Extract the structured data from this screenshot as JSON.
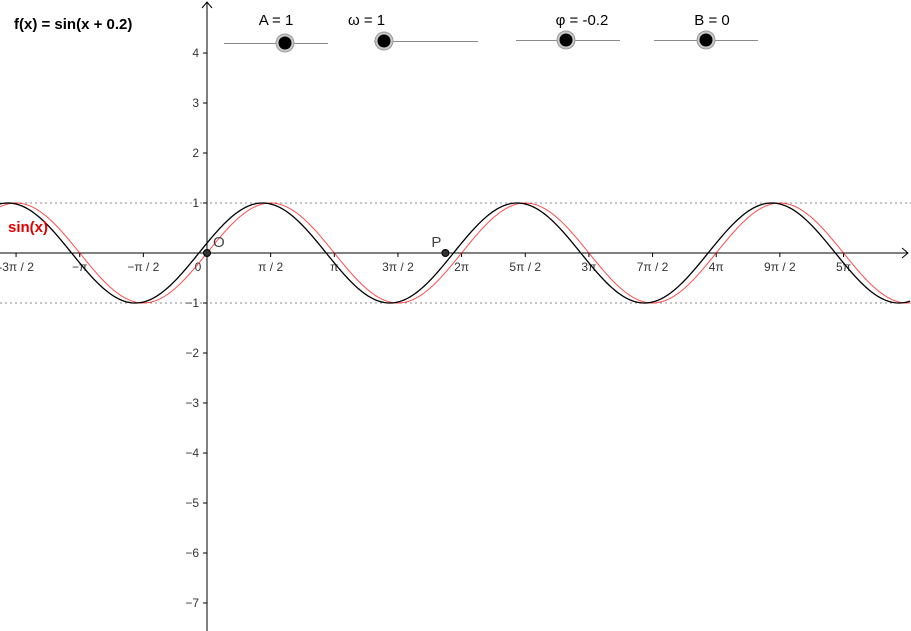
{
  "function_label": "f(x) = sin(x + 0.2)",
  "sliders": [
    {
      "label": "A = 1",
      "value": 1
    },
    {
      "label": "ω = 1",
      "value": 1
    },
    {
      "label": "φ = -0.2",
      "value": -0.2
    },
    {
      "label": "B = 0",
      "value": 0
    }
  ],
  "colors": {
    "f_curve": "#000000",
    "sin_curve": "#ff0000",
    "axis": "#000000",
    "text": "#333333"
  },
  "chart_data": {
    "type": "line",
    "title": "",
    "xlabel": "",
    "ylabel": "",
    "xlim": [
      -4.71,
      14.6
    ],
    "ylim": [
      -7.5,
      5
    ],
    "x_ticks": [
      {
        "value": -4.712,
        "label": "-3π / 2"
      },
      {
        "value": -3.1416,
        "label": "−π"
      },
      {
        "value": -1.5708,
        "label": "−π / 2"
      },
      {
        "value": 0,
        "label": "0"
      },
      {
        "value": 1.5708,
        "label": "π / 2"
      },
      {
        "value": 3.1416,
        "label": "π"
      },
      {
        "value": 4.712,
        "label": "3π / 2"
      },
      {
        "value": 6.2832,
        "label": "2π"
      },
      {
        "value": 7.854,
        "label": "5π / 2"
      },
      {
        "value": 9.4248,
        "label": "3π"
      },
      {
        "value": 10.9956,
        "label": "7π / 2"
      },
      {
        "value": 12.5664,
        "label": "4π"
      },
      {
        "value": 14.1372,
        "label": "9π / 2"
      },
      {
        "value": 15.708,
        "label": "5π"
      }
    ],
    "y_ticks": [
      {
        "value": 4,
        "label": "4"
      },
      {
        "value": 3,
        "label": "3"
      },
      {
        "value": 2,
        "label": "2"
      },
      {
        "value": 1,
        "label": "1"
      },
      {
        "value": -1,
        "label": "−1"
      },
      {
        "value": -2,
        "label": "−2"
      },
      {
        "value": -3,
        "label": "−3"
      },
      {
        "value": -4,
        "label": "−4"
      },
      {
        "value": -5,
        "label": "−5"
      },
      {
        "value": -6,
        "label": "−6"
      },
      {
        "value": -7,
        "label": "−7"
      }
    ],
    "series": [
      {
        "name": "sin(x)",
        "formula": "sin(x)",
        "color": "#ff0000"
      },
      {
        "name": "",
        "formula": "sin(x + 0.2)",
        "color": "#000000"
      }
    ],
    "guide_lines_y": [
      1,
      -1
    ],
    "points": [
      {
        "label": "O",
        "x": 0,
        "y": 0
      },
      {
        "label": "P",
        "x": 5.8832,
        "y": 0
      }
    ],
    "grid": false
  }
}
